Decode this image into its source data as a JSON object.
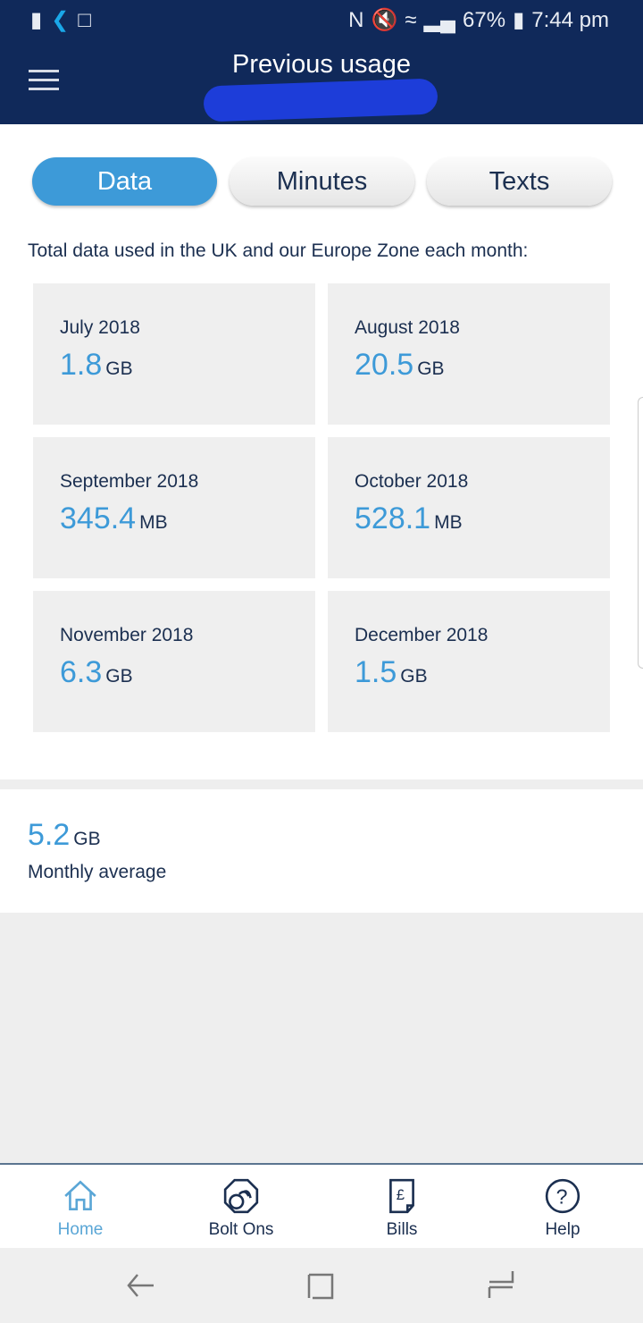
{
  "status_bar": {
    "battery": "67%",
    "time": "7:44 pm"
  },
  "header": {
    "title": "Previous usage"
  },
  "tabs": [
    {
      "label": "Data",
      "active": true
    },
    {
      "label": "Minutes",
      "active": false
    },
    {
      "label": "Texts",
      "active": false
    }
  ],
  "intro": "Total data used in the UK and our Europe Zone each month:",
  "months": [
    {
      "month": "July 2018",
      "value": "1.8",
      "unit": "GB"
    },
    {
      "month": "August 2018",
      "value": "20.5",
      "unit": "GB"
    },
    {
      "month": "September 2018",
      "value": "345.4",
      "unit": "MB"
    },
    {
      "month": "October 2018",
      "value": "528.1",
      "unit": "MB"
    },
    {
      "month": "November 2018",
      "value": "6.3",
      "unit": "GB"
    },
    {
      "month": "December 2018",
      "value": "1.5",
      "unit": "GB"
    }
  ],
  "average": {
    "value": "5.2",
    "unit": "GB",
    "label": "Monthly average"
  },
  "bottom_nav": [
    {
      "label": "Home",
      "icon": "home-icon",
      "active": true
    },
    {
      "label": "Bolt Ons",
      "icon": "bolt-ons-icon"
    },
    {
      "label": "Bills",
      "icon": "bills-icon"
    },
    {
      "label": "Help",
      "icon": "help-icon"
    }
  ],
  "colors": {
    "header": "#10295a",
    "accent": "#3d9ad8",
    "text": "#1b2f50"
  }
}
